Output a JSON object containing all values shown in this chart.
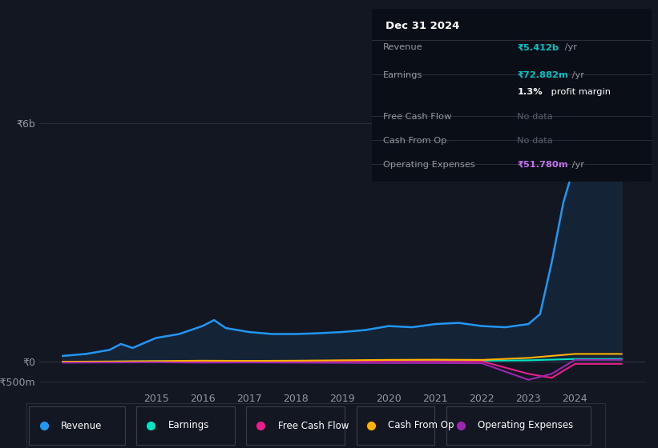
{
  "background_color": "#131722",
  "plot_bg_color": "#131722",
  "grid_color": "#2a2e39",
  "title_box": {
    "date": "Dec 31 2024",
    "rows": [
      {
        "label": "Revenue",
        "value": "₹5.412b",
        "suffix": " /yr",
        "value_color": "#00c4c4",
        "label_color": "#9598a1"
      },
      {
        "label": "Earnings",
        "value": "₹72.882m",
        "suffix": " /yr",
        "value_color": "#00c4c4",
        "label_color": "#9598a1"
      },
      {
        "label": "",
        "value": "1.3%",
        "suffix": " profit margin",
        "value_color": "#ffffff",
        "label_color": "#9598a1"
      },
      {
        "label": "Free Cash Flow",
        "value": "No data",
        "suffix": "",
        "value_color": "#5a5e6b",
        "label_color": "#9598a1"
      },
      {
        "label": "Cash From Op",
        "value": "No data",
        "suffix": "",
        "value_color": "#5a5e6b",
        "label_color": "#9598a1"
      },
      {
        "label": "Operating Expenses",
        "value": "₹51.780m",
        "suffix": " /yr",
        "value_color": "#c471ed",
        "label_color": "#9598a1"
      }
    ]
  },
  "ylim": [
    -700000000,
    6500000000
  ],
  "xlim": [
    2012.5,
    2025.5
  ],
  "yticks": [
    6000000000,
    0,
    -500000000
  ],
  "ytick_labels": [
    "₹6b",
    "₹0",
    "-₹500m"
  ],
  "xticks": [
    2015,
    2016,
    2017,
    2018,
    2019,
    2020,
    2021,
    2022,
    2023,
    2024
  ],
  "series": {
    "Revenue": {
      "color": "#2196f3",
      "fill_color": "#1a3a5c",
      "x": [
        2013,
        2013.5,
        2014,
        2014.25,
        2014.5,
        2015,
        2015.5,
        2016,
        2016.25,
        2016.5,
        2017,
        2017.5,
        2018,
        2018.5,
        2019,
        2019.5,
        2020,
        2020.5,
        2021,
        2021.5,
        2022,
        2022.5,
        2023,
        2023.25,
        2023.5,
        2023.75,
        2024,
        2024.5,
        2025
      ],
      "y": [
        150000000,
        200000000,
        300000000,
        450000000,
        350000000,
        600000000,
        700000000,
        900000000,
        1050000000,
        850000000,
        750000000,
        700000000,
        700000000,
        720000000,
        750000000,
        800000000,
        900000000,
        870000000,
        950000000,
        980000000,
        900000000,
        870000000,
        950000000,
        1200000000,
        2500000000,
        4000000000,
        5000000000,
        5412000000,
        5412000000
      ]
    },
    "Earnings": {
      "color": "#00e5c3",
      "x": [
        2013,
        2014,
        2015,
        2016,
        2017,
        2018,
        2019,
        2020,
        2021,
        2022,
        2023,
        2024,
        2025
      ],
      "y": [
        5000000,
        8000000,
        15000000,
        20000000,
        18000000,
        20000000,
        25000000,
        30000000,
        35000000,
        30000000,
        40000000,
        72882000,
        72882000
      ]
    },
    "FreeCashFlow": {
      "color": "#e91e8c",
      "x": [
        2013,
        2014,
        2015,
        2016,
        2017,
        2018,
        2019,
        2020,
        2021,
        2022,
        2023,
        2023.5,
        2024,
        2025
      ],
      "y": [
        -10000000,
        -5000000,
        5000000,
        10000000,
        8000000,
        10000000,
        15000000,
        20000000,
        18000000,
        15000000,
        -300000000,
        -400000000,
        -50000000,
        -50000000
      ]
    },
    "CashFromOp": {
      "color": "#ffb300",
      "x": [
        2013,
        2014,
        2015,
        2016,
        2017,
        2018,
        2019,
        2020,
        2021,
        2022,
        2023,
        2024,
        2025
      ],
      "y": [
        5000000,
        10000000,
        20000000,
        30000000,
        25000000,
        30000000,
        40000000,
        50000000,
        55000000,
        50000000,
        100000000,
        200000000,
        200000000
      ]
    },
    "OperatingExpenses": {
      "color": "#9c27b0",
      "x": [
        2013,
        2014,
        2015,
        2016,
        2017,
        2018,
        2019,
        2020,
        2021,
        2022,
        2023,
        2023.5,
        2024,
        2025
      ],
      "y": [
        -20000000,
        -15000000,
        -10000000,
        -20000000,
        -15000000,
        -20000000,
        -25000000,
        -30000000,
        -30000000,
        -35000000,
        -450000000,
        -300000000,
        51780000,
        51780000
      ]
    }
  },
  "legend": [
    {
      "label": "Revenue",
      "color": "#2196f3"
    },
    {
      "label": "Earnings",
      "color": "#00e5c3"
    },
    {
      "label": "Free Cash Flow",
      "color": "#e91e8c"
    },
    {
      "label": "Cash From Op",
      "color": "#ffb300"
    },
    {
      "label": "Operating Expenses",
      "color": "#9c27b0"
    }
  ]
}
